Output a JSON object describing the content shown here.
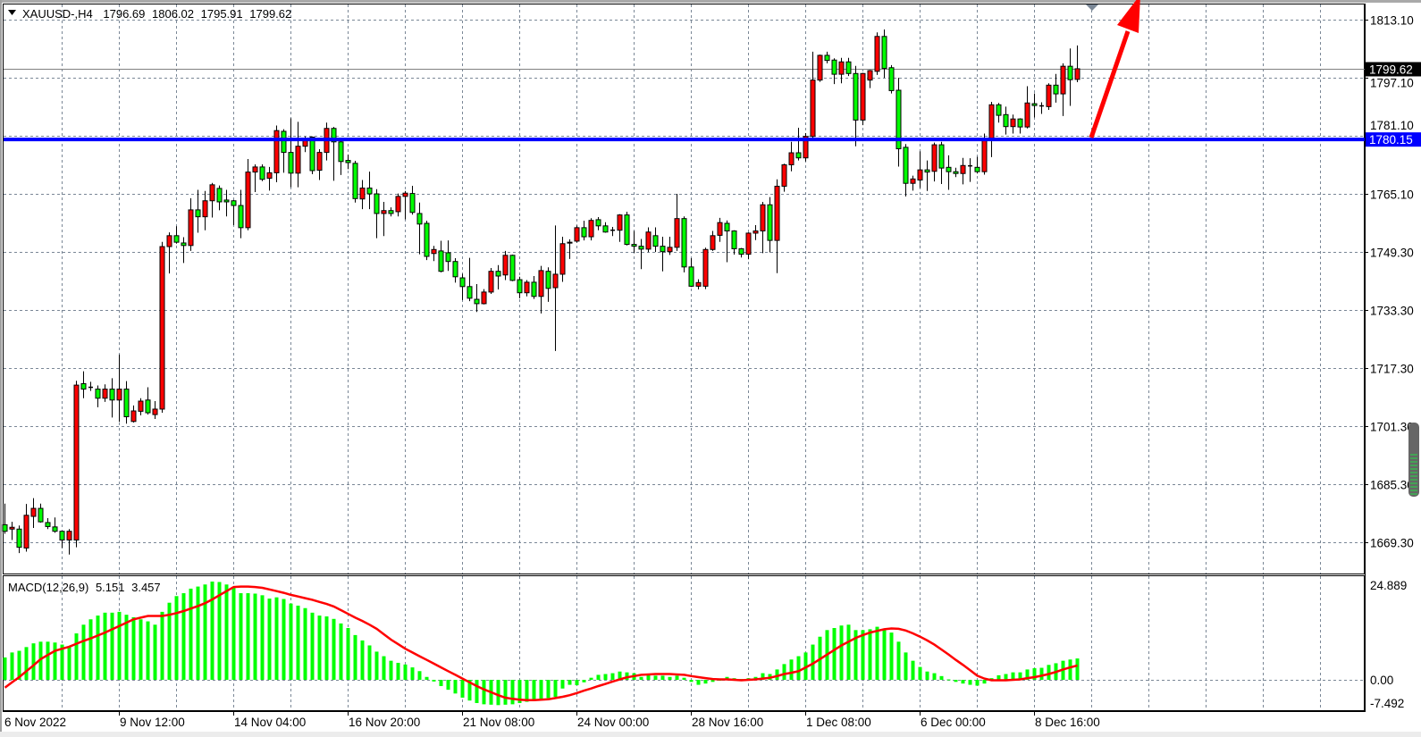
{
  "header": {
    "symbol": "XAUUSD-,H4",
    "open": "1796.69",
    "high": "1806.02",
    "low": "1795.91",
    "close": "1799.62",
    "menu_icon": "triangle-down-icon"
  },
  "price_axis": {
    "labels": [
      "1813.10",
      "1797.10",
      "1781.10",
      "1765.10",
      "1749.30",
      "1733.30",
      "1717.30",
      "1701.30",
      "1685.30",
      "1669.30"
    ],
    "current_price_label": "1799.62",
    "horizontal_level_label": "1780.15"
  },
  "macd_axis": {
    "labels": [
      "24.889",
      "0.00",
      "-7.492"
    ]
  },
  "time_axis": {
    "labels": [
      "6 Nov 2022",
      "9 Nov 12:00",
      "14 Nov 04:00",
      "16 Nov 20:00",
      "21 Nov 08:00",
      "24 Nov 00:00",
      "28 Nov 16:00",
      "1 Dec 08:00",
      "6 Dec 00:00",
      "8 Dec 16:00"
    ]
  },
  "macd_header": {
    "name": "MACD(12,26,9)",
    "main_value": "5.151",
    "signal_value": "3.457"
  },
  "colors": {
    "bull_candle": "#ff0000",
    "bear_candle": "#00ff00",
    "horizontal_level": "#0000ff",
    "current_price_line": "#808080",
    "macd_histogram": "#00ff00",
    "macd_signal": "#ff0000",
    "annotation_arrow": "#ff0000",
    "grid": "#7a8796"
  },
  "annotations": {
    "horizontal_level_price": 1780.15,
    "arrow": "red-up-arrow-icon"
  },
  "chart_data": [
    {
      "type": "candlestick",
      "timeframe": "H4",
      "ylim": [
        1664,
        1817
      ],
      "grid": true,
      "candle_fields": [
        "open",
        "high",
        "low",
        "close"
      ],
      "candles": [
        [
          1674.2,
          1680,
          1671.7,
          1672.4
        ],
        [
          1673,
          1675,
          1670,
          1673.5
        ],
        [
          1673,
          1674,
          1666.4,
          1668
        ],
        [
          1667.8,
          1679.9,
          1666.8,
          1676.8
        ],
        [
          1676.5,
          1681.5,
          1673.3,
          1678.7
        ],
        [
          1678.7,
          1680,
          1674.8,
          1675
        ],
        [
          1674.8,
          1676,
          1673,
          1673.7
        ],
        [
          1673.6,
          1676.2,
          1672,
          1672.4
        ],
        [
          1672.4,
          1672.5,
          1667.8,
          1670
        ],
        [
          1670,
          1673,
          1666,
          1672.4
        ],
        [
          1670,
          1713.8,
          1668,
          1712.6
        ],
        [
          1713,
          1716.4,
          1709,
          1711.5
        ],
        [
          1712,
          1713.5,
          1711,
          1712
        ],
        [
          1711.5,
          1712.5,
          1706.5,
          1709
        ],
        [
          1709,
          1712.8,
          1708,
          1711.5
        ],
        [
          1711.5,
          1714.5,
          1703.7,
          1708.5
        ],
        [
          1708.5,
          1721,
          1702.5,
          1711.5
        ],
        [
          1711.5,
          1713.7,
          1702,
          1703.9
        ],
        [
          1702.6,
          1707,
          1702.3,
          1705.5
        ],
        [
          1705.4,
          1709,
          1704.3,
          1708.2
        ],
        [
          1708.5,
          1712,
          1704.5,
          1705
        ],
        [
          1704.5,
          1708.2,
          1703.3,
          1706
        ],
        [
          1706,
          1752,
          1705,
          1750.7
        ],
        [
          1750.7,
          1754.6,
          1743.3,
          1753.7
        ],
        [
          1753.7,
          1756.3,
          1751.5,
          1751.9
        ],
        [
          1751.7,
          1753.3,
          1746.2,
          1751
        ],
        [
          1751,
          1764,
          1749.5,
          1760.8
        ],
        [
          1760.8,
          1766.3,
          1754.5,
          1758.9
        ],
        [
          1758.9,
          1766,
          1755.2,
          1763.3
        ],
        [
          1763.3,
          1768.2,
          1758.7,
          1767.7
        ],
        [
          1766.7,
          1767.5,
          1760.7,
          1763
        ],
        [
          1763.5,
          1766.3,
          1759,
          1763
        ],
        [
          1763.3,
          1763.5,
          1756.6,
          1762
        ],
        [
          1762,
          1766.3,
          1753,
          1755.9
        ],
        [
          1755.9,
          1774.8,
          1755.2,
          1771.2
        ],
        [
          1771.2,
          1773.3,
          1765.7,
          1772.6
        ],
        [
          1772.6,
          1773.3,
          1768.7,
          1769.2
        ],
        [
          1769.5,
          1772.6,
          1766.1,
          1771
        ],
        [
          1771,
          1784,
          1768.4,
          1782.6
        ],
        [
          1782.4,
          1783,
          1771,
          1776.6
        ],
        [
          1776.6,
          1786,
          1767,
          1770.9
        ],
        [
          1770.9,
          1785,
          1767,
          1778.3
        ],
        [
          1778.3,
          1781,
          1776.7,
          1780.1
        ],
        [
          1780.8,
          1781,
          1770.6,
          1771.6
        ],
        [
          1771.7,
          1777.5,
          1769,
          1776.6
        ],
        [
          1776.6,
          1784.8,
          1774.4,
          1783.2
        ],
        [
          1783.2,
          1783.6,
          1768.8,
          1779.5
        ],
        [
          1779.5,
          1779.7,
          1770.4,
          1774.1
        ],
        [
          1774.4,
          1776,
          1772,
          1773.8
        ],
        [
          1773.6,
          1774.3,
          1762.8,
          1763.9
        ],
        [
          1763.8,
          1769,
          1761,
          1766.8
        ],
        [
          1766.8,
          1771.3,
          1761,
          1765.2
        ],
        [
          1765.2,
          1766.5,
          1753,
          1759.8
        ],
        [
          1759.8,
          1763,
          1753.6,
          1760.6
        ],
        [
          1760.6,
          1761.5,
          1759,
          1759.8
        ],
        [
          1760.3,
          1765.3,
          1759,
          1764.5
        ],
        [
          1764.5,
          1766,
          1758.2,
          1765.4
        ],
        [
          1765.3,
          1767.4,
          1759.5,
          1760.1
        ],
        [
          1759.8,
          1762.8,
          1748.6,
          1756.9
        ],
        [
          1757.1,
          1757.8,
          1747,
          1748
        ],
        [
          1748.8,
          1750.9,
          1746.7,
          1749.9
        ],
        [
          1749.5,
          1752.3,
          1743.6,
          1743.9
        ],
        [
          1749,
          1752.4,
          1744,
          1746.6
        ],
        [
          1746.6,
          1747.5,
          1740.8,
          1742.4
        ],
        [
          1742.1,
          1743.2,
          1736,
          1739.7
        ],
        [
          1739.7,
          1747.6,
          1735.7,
          1736.5
        ],
        [
          1736.2,
          1740.4,
          1732.7,
          1735
        ],
        [
          1735,
          1739,
          1734.8,
          1738.2
        ],
        [
          1738.2,
          1744.8,
          1737.7,
          1743.9
        ],
        [
          1743.9,
          1745.6,
          1738.9,
          1742.6
        ],
        [
          1742.9,
          1749.5,
          1741.5,
          1748.3
        ],
        [
          1748.3,
          1748.5,
          1741.2,
          1741.4
        ],
        [
          1741.6,
          1742.4,
          1736.5,
          1738
        ],
        [
          1738,
          1741.5,
          1737,
          1740.9
        ],
        [
          1740.9,
          1742.6,
          1736.3,
          1737
        ],
        [
          1737,
          1745.4,
          1732.3,
          1744.1
        ],
        [
          1743.9,
          1745,
          1735.5,
          1739.2
        ],
        [
          1739.4,
          1756.5,
          1722,
          1743.1
        ],
        [
          1743.1,
          1753.4,
          1741,
          1751.5
        ],
        [
          1751.7,
          1752.7,
          1747.3,
          1751.9
        ],
        [
          1752.2,
          1756.5,
          1751.8,
          1755.9
        ],
        [
          1755.9,
          1757.8,
          1752.4,
          1753.4
        ],
        [
          1753.4,
          1758.5,
          1752.4,
          1757.9
        ],
        [
          1758.1,
          1758.8,
          1755.2,
          1756.4
        ],
        [
          1756.4,
          1757.4,
          1754.5,
          1754.7
        ],
        [
          1755.2,
          1756.1,
          1753.6,
          1755.2
        ],
        [
          1755.2,
          1759.6,
          1752,
          1759.4
        ],
        [
          1759.4,
          1760.3,
          1751,
          1751.3
        ],
        [
          1751.3,
          1755,
          1749,
          1750.8
        ],
        [
          1750.8,
          1752.8,
          1744.5,
          1750
        ],
        [
          1750,
          1756,
          1749.2,
          1754.7
        ],
        [
          1753.7,
          1756,
          1749.2,
          1750.8
        ],
        [
          1750.8,
          1753.4,
          1743.9,
          1749.3
        ],
        [
          1749.3,
          1753.4,
          1748.4,
          1750.5
        ],
        [
          1750.5,
          1765.2,
          1749.5,
          1758.4
        ],
        [
          1758.4,
          1759,
          1743.6,
          1745.1
        ],
        [
          1745.1,
          1747.5,
          1739.6,
          1739.8
        ],
        [
          1739.8,
          1741.7,
          1738.9,
          1740.8
        ],
        [
          1739.8,
          1750.4,
          1739,
          1749.9
        ],
        [
          1749.9,
          1755,
          1749.5,
          1753.7
        ],
        [
          1753.8,
          1758.6,
          1752,
          1757.3
        ],
        [
          1757.1,
          1757.9,
          1746.4,
          1755
        ],
        [
          1755,
          1755.2,
          1748.5,
          1750.1
        ],
        [
          1750.1,
          1750.3,
          1747.7,
          1748.6
        ],
        [
          1748.6,
          1754.6,
          1747.2,
          1754.4
        ],
        [
          1754.4,
          1756.6,
          1752.5,
          1755
        ],
        [
          1755,
          1763,
          1748.9,
          1762.2
        ],
        [
          1762.2,
          1764.3,
          1749.1,
          1752.4
        ],
        [
          1752.4,
          1769.2,
          1743.4,
          1767.3
        ],
        [
          1767.3,
          1773.5,
          1765.8,
          1773.2
        ],
        [
          1773.2,
          1779.5,
          1771.4,
          1776.5
        ],
        [
          1776.5,
          1783.4,
          1774.4,
          1775.1
        ],
        [
          1775.1,
          1781.9,
          1774.1,
          1781
        ],
        [
          1781,
          1804.3,
          1780,
          1796.5
        ],
        [
          1796.5,
          1803.5,
          1796,
          1803.3
        ],
        [
          1803.3,
          1804.3,
          1801.1,
          1801.9
        ],
        [
          1802,
          1802.5,
          1795.4,
          1798.1
        ],
        [
          1798.1,
          1802.6,
          1795.6,
          1801.5
        ],
        [
          1801.5,
          1802.6,
          1797.6,
          1798.3
        ],
        [
          1798.3,
          1800.4,
          1778.3,
          1785.5
        ],
        [
          1785.5,
          1798.5,
          1784.1,
          1798.3
        ],
        [
          1796.5,
          1799.3,
          1794.3,
          1799.1
        ],
        [
          1798.9,
          1809.6,
          1797.9,
          1808.5
        ],
        [
          1808.5,
          1810.4,
          1797.1,
          1799.7
        ],
        [
          1799.9,
          1800.6,
          1792.8,
          1793.6
        ],
        [
          1793.7,
          1797.1,
          1772.7,
          1777.6
        ],
        [
          1778,
          1778.9,
          1764.5,
          1768.1
        ],
        [
          1768.1,
          1770.2,
          1766.1,
          1769.3
        ],
        [
          1769,
          1776.9,
          1766.8,
          1771.8
        ],
        [
          1771.8,
          1774.4,
          1766,
          1771.2
        ],
        [
          1771.4,
          1779.3,
          1768.6,
          1778.7
        ],
        [
          1778.7,
          1779.5,
          1767.9,
          1772.3
        ],
        [
          1772.5,
          1775.8,
          1766.3,
          1771.3
        ],
        [
          1771.3,
          1772.4,
          1769.8,
          1770.8
        ],
        [
          1770.8,
          1775.1,
          1767.8,
          1773
        ],
        [
          1772.9,
          1775,
          1768.5,
          1772.9
        ],
        [
          1772.5,
          1775.4,
          1770.8,
          1771.3
        ],
        [
          1771.3,
          1781.8,
          1770.5,
          1780.2
        ],
        [
          1780.2,
          1790.5,
          1775.3,
          1789.7
        ],
        [
          1789.7,
          1790.2,
          1784.8,
          1786.8
        ],
        [
          1787,
          1789.2,
          1781.5,
          1783.7
        ],
        [
          1783.7,
          1787,
          1781.8,
          1785.8
        ],
        [
          1785.8,
          1786,
          1781.8,
          1783.6
        ],
        [
          1783.6,
          1794.8,
          1783.2,
          1790.2
        ],
        [
          1790,
          1792.8,
          1786.2,
          1789.5
        ],
        [
          1789.4,
          1790.4,
          1787.2,
          1789.4
        ],
        [
          1789.2,
          1795.6,
          1788.3,
          1795.1
        ],
        [
          1795.1,
          1798.2,
          1790.3,
          1792.7
        ],
        [
          1792.7,
          1801.1,
          1786.6,
          1800.3
        ],
        [
          1800.3,
          1805.2,
          1789.4,
          1796.6
        ],
        [
          1796.69,
          1806.02,
          1795.91,
          1799.62
        ]
      ]
    },
    {
      "type": "bar",
      "indicator": "MACD(12,26,9)",
      "ylim": [
        -7.492,
        24.889
      ],
      "histogram": [
        5.4,
        6.6,
        7.0,
        7.9,
        8.8,
        9.2,
        9.2,
        9.0,
        8.5,
        8.0,
        11.2,
        13.3,
        14.6,
        15.5,
        16.2,
        16.2,
        16.4,
        15.7,
        15.1,
        14.6,
        14.1,
        13.3,
        16.4,
        18.6,
        20.2,
        20.9,
        22.0,
        22.5,
        23.0,
        23.7,
        23.6,
        23.0,
        22.4,
        20.9,
        20.9,
        20.8,
        20.4,
        19.6,
        19.9,
        19.5,
        18.4,
        17.9,
        17.3,
        16.2,
        15.5,
        15.3,
        14.7,
        13.6,
        12.5,
        10.8,
        9.5,
        8.3,
        6.8,
        5.7,
        4.6,
        4.1,
        3.7,
        3.0,
        2.1,
        0.7,
        -0.4,
        -1.5,
        -2.4,
        -3.3,
        -4.3,
        -5.0,
        -5.6,
        -5.9,
        -6.0,
        -6.1,
        -6.0,
        -5.9,
        -5.6,
        -5.3,
        -5.0,
        -4.6,
        -4.4,
        -4.1,
        -2.1,
        -1.2,
        -1.3,
        -0.6,
        0.5,
        1.2,
        1.4,
        1.6,
        2.0,
        1.8,
        1.6,
        0.7,
        1.2,
        1.0,
        1.0,
        0.7,
        1.0,
        0.5,
        -0.5,
        -1.2,
        -0.9,
        -0.5,
        -0.1,
        0.7,
        0.4,
        0.2,
        0.4,
        0.7,
        1.6,
        1.4,
        2.5,
        3.8,
        4.9,
        5.7,
        6.6,
        8.5,
        10.4,
        12.0,
        12.5,
        13.1,
        13.3,
        12.0,
        12.0,
        12.2,
        12.8,
        12.0,
        11.4,
        9.2,
        6.6,
        4.6,
        3.1,
        2.0,
        1.6,
        0.9,
        0.1,
        -0.5,
        -0.9,
        -1.2,
        -1.4,
        -0.9,
        0.4,
        1.1,
        1.4,
        1.8,
        1.8,
        2.5,
        2.8,
        2.9,
        3.6,
        4.0,
        4.6,
        4.9,
        5.151
      ],
      "signal": [
        -1.9,
        -0.6,
        0.65,
        2.1,
        3.5,
        5.0,
        6.0,
        7.0,
        7.5,
        8.0,
        8.7,
        9.4,
        10.0,
        10.7,
        11.4,
        12.2,
        13.0,
        13.8,
        14.6,
        15.0,
        15.4,
        15.4,
        15.4,
        15.7,
        16.1,
        16.6,
        17.2,
        17.8,
        18.5,
        19.4,
        20.4,
        21.4,
        22.4,
        22.5,
        22.5,
        22.4,
        22.2,
        21.8,
        21.4,
        21.0,
        20.5,
        20.1,
        19.7,
        19.3,
        18.8,
        18.3,
        17.7,
        16.8,
        15.9,
        15.0,
        14.2,
        13.3,
        12.3,
        11.0,
        9.7,
        8.6,
        7.5,
        6.6,
        5.7,
        4.8,
        3.9,
        3.0,
        2.1,
        1.2,
        0.3,
        -0.6,
        -1.5,
        -2.3,
        -3.0,
        -3.7,
        -4.3,
        -4.6,
        -4.8,
        -4.9,
        -4.9,
        -4.8,
        -4.7,
        -4.4,
        -4.1,
        -3.7,
        -3.2,
        -2.6,
        -2.1,
        -1.5,
        -1.0,
        -0.4,
        0.1,
        0.6,
        0.9,
        1.2,
        1.3,
        1.4,
        1.4,
        1.4,
        1.3,
        1.2,
        0.9,
        0.65,
        0.4,
        0.2,
        0.1,
        0.1,
        0.0,
        -0.1,
        0.0,
        0.1,
        0.3,
        0.5,
        0.9,
        1.4,
        1.7,
        2.1,
        3.0,
        3.9,
        5.0,
        6.1,
        7.2,
        8.3,
        9.2,
        10.1,
        10.8,
        11.4,
        11.8,
        12.2,
        12.4,
        12.3,
        11.9,
        11.2,
        10.4,
        9.5,
        8.5,
        7.3,
        6.1,
        4.8,
        3.6,
        2.3,
        1.0,
        0.3,
        -0.1,
        -0.1,
        -0.1,
        0.0,
        0.1,
        0.4,
        0.65,
        1.0,
        1.4,
        1.9,
        2.5,
        3.0,
        3.457
      ]
    }
  ]
}
